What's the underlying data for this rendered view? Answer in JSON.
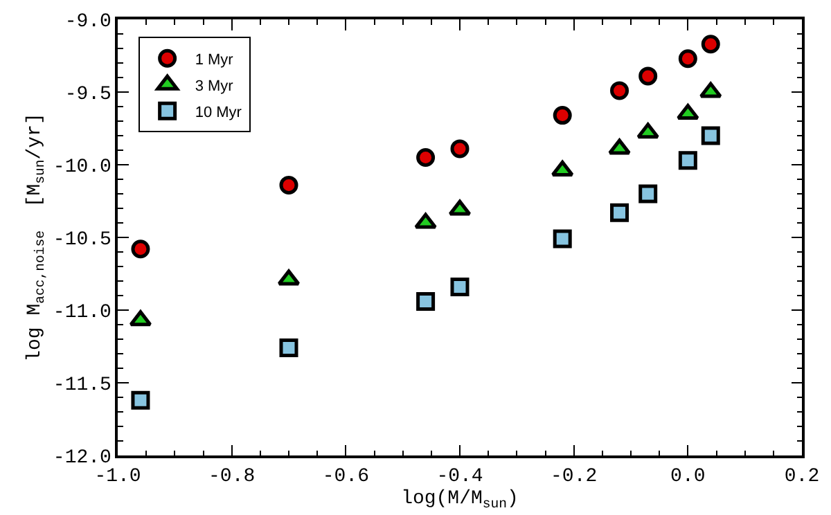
{
  "chart_data": {
    "type": "scatter",
    "xlabel": "log(M/M$_{sun}$)",
    "ylabel": "log M$_{acc,noise}$  [M$_{sun}$/yr]",
    "x": [
      -0.96,
      -0.7,
      -0.46,
      -0.4,
      -0.22,
      -0.12,
      -0.07,
      0.0,
      0.04
    ],
    "series": [
      {
        "name": "1 Myr",
        "color": "#dd0000",
        "marker": "circle",
        "values": [
          -10.58,
          -10.14,
          -9.95,
          -9.89,
          -9.66,
          -9.49,
          -9.39,
          -9.27,
          -9.17
        ]
      },
      {
        "name": "3 Myr",
        "color": "#22cc22",
        "marker": "triangle",
        "values": [
          -11.07,
          -10.79,
          -10.4,
          -10.31,
          -10.04,
          -9.89,
          -9.78,
          -9.65,
          -9.5
        ]
      },
      {
        "name": "10 Myr",
        "color": "#87c4e0",
        "marker": "square",
        "values": [
          -11.62,
          -11.26,
          -10.94,
          -10.84,
          -10.51,
          -10.33,
          -10.2,
          -9.97,
          -9.8
        ]
      }
    ],
    "xlim": [
      -1.0,
      0.2
    ],
    "xticks": [
      {
        "value": -1.0,
        "label": "-1.0"
      },
      -0.8,
      -0.6,
      -0.4,
      -0.2,
      {
        "value": 0.0,
        "label": "0.0"
      },
      0.2
    ],
    "ylim": [
      -12.0,
      -9.0
    ],
    "yticks": [
      {
        "value": -12.0,
        "label": "-12.0"
      },
      {
        "value": -11.5,
        "label": "-11.5"
      },
      {
        "value": -11.0,
        "label": "-11.0"
      },
      {
        "value": -10.5,
        "label": "-10.5"
      },
      {
        "value": -10.0,
        "label": "-10.0"
      },
      -9.5,
      {
        "value": -9.0,
        "label": "-9.0"
      }
    ],
    "legend": "top left"
  }
}
